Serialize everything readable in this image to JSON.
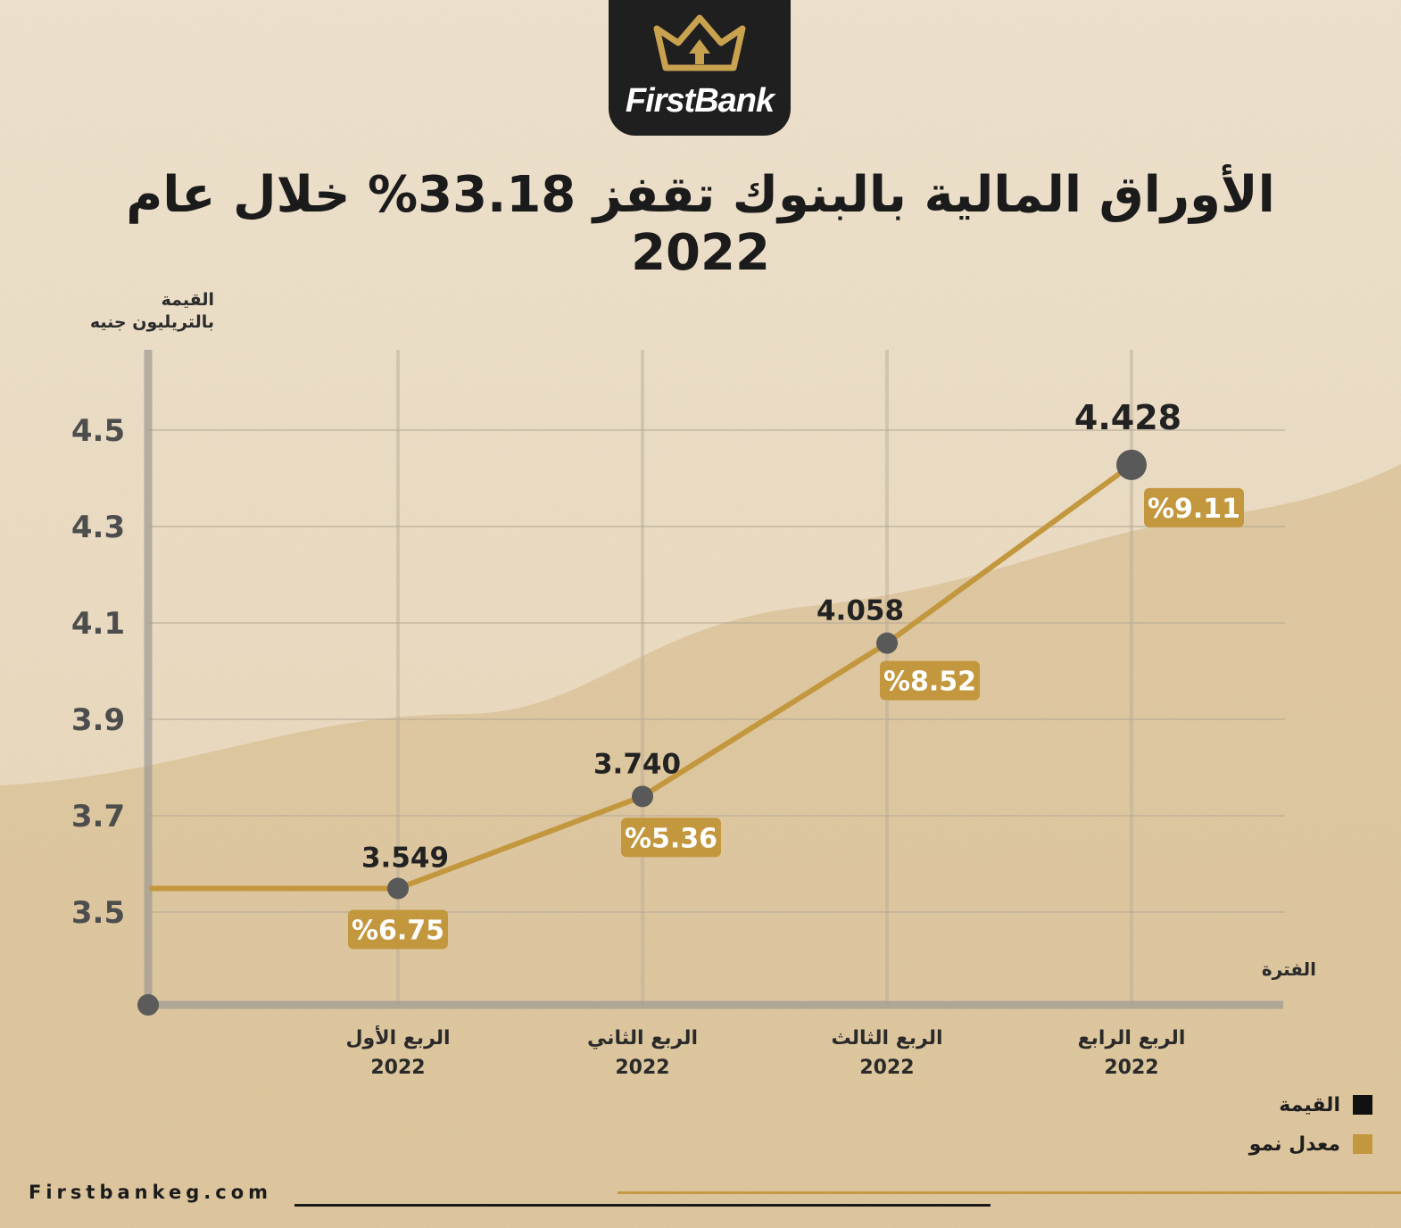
{
  "brand": {
    "name": "FirstBank",
    "accent": "#c3973e",
    "dark": "#1f1f1f"
  },
  "title": "الأوراق المالية بالبنوك تقفز 33.18% خلال عام 2022",
  "footer": {
    "url": "Firstbankeg.com"
  },
  "chart_data": {
    "type": "line",
    "title": "الأوراق المالية بالبنوك تقفز 33.18% خلال عام 2022",
    "ylabel_lines": [
      "القيمة",
      "بالتريليون جنيه"
    ],
    "xlabel": "الفترة",
    "yticks": [
      "4.5",
      "4.3",
      "4.1",
      "3.9",
      "3.7",
      "3.5"
    ],
    "ylim": [
      3.5,
      4.5
    ],
    "grid": true,
    "categories": [
      {
        "name": "الربع الأول",
        "year": "2022"
      },
      {
        "name": "الربع الثاني",
        "year": "2022"
      },
      {
        "name": "الربع الثالث",
        "year": "2022"
      },
      {
        "name": "الربع الرابع",
        "year": "2022"
      }
    ],
    "series": [
      {
        "name": "القيمة",
        "color": "#1e1e1e",
        "values": [
          3.549,
          3.74,
          4.058,
          4.428
        ],
        "labels": [
          "3.549",
          "3.740",
          "4.058",
          "4.428"
        ]
      },
      {
        "name": "معدل نمو",
        "color": "#c3973e",
        "values": [
          6.75,
          5.36,
          8.52,
          9.11
        ],
        "labels": [
          "%6.75",
          "%5.36",
          "%8.52",
          "%9.11"
        ]
      }
    ],
    "legend_position": "bottom-right"
  }
}
